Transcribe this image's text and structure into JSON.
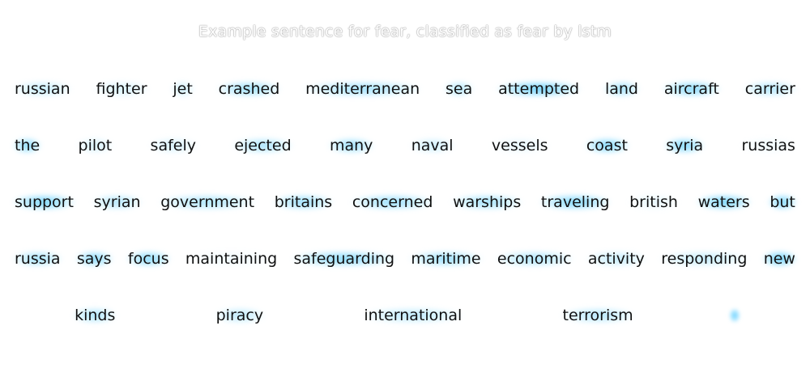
{
  "title": "Example sentence for fear, classified as fear by lstm",
  "rows": [
    [
      {
        "text": "russian",
        "w": 0.35
      },
      {
        "text": "fighter",
        "w": 0.25
      },
      {
        "text": "jet",
        "w": 0.3
      },
      {
        "text": "crashed",
        "w": 0.6
      },
      {
        "text": "mediterranean",
        "w": 0.55
      },
      {
        "text": "sea",
        "w": 0.45
      },
      {
        "text": "attempted",
        "w": 0.85
      },
      {
        "text": "land",
        "w": 0.55
      },
      {
        "text": "aircraft",
        "w": 0.7
      },
      {
        "text": "carrier",
        "w": 0.45
      }
    ],
    [
      {
        "text": "the",
        "w": 0.7
      },
      {
        "text": "pilot",
        "w": 0.25
      },
      {
        "text": "safely",
        "w": 0.25
      },
      {
        "text": "ejected",
        "w": 0.5
      },
      {
        "text": "many",
        "w": 0.6
      },
      {
        "text": "naval",
        "w": 0.3
      },
      {
        "text": "vessels",
        "w": 0.15
      },
      {
        "text": "coast",
        "w": 0.75
      },
      {
        "text": "syria",
        "w": 0.75
      },
      {
        "text": "russias",
        "w": 0.1
      }
    ],
    [
      {
        "text": "support",
        "w": 0.8
      },
      {
        "text": "syrian",
        "w": 0.45
      },
      {
        "text": "government",
        "w": 0.5
      },
      {
        "text": "britains",
        "w": 0.6
      },
      {
        "text": "concerned",
        "w": 0.6
      },
      {
        "text": "warships",
        "w": 0.55
      },
      {
        "text": "traveling",
        "w": 0.75
      },
      {
        "text": "british",
        "w": 0.15
      },
      {
        "text": "waters",
        "w": 0.8
      },
      {
        "text": "but",
        "w": 0.75
      }
    ],
    [
      {
        "text": "russia",
        "w": 0.55
      },
      {
        "text": "says",
        "w": 0.7
      },
      {
        "text": "focus",
        "w": 0.7
      },
      {
        "text": "maintaining",
        "w": 0.1
      },
      {
        "text": "safeguarding",
        "w": 0.7
      },
      {
        "text": "maritime",
        "w": 0.6
      },
      {
        "text": "economic",
        "w": 0.5
      },
      {
        "text": "activity",
        "w": 0.35
      },
      {
        "text": "responding",
        "w": 0.35
      },
      {
        "text": "new",
        "w": 0.85
      }
    ],
    [
      {
        "text": "kinds",
        "w": 0.5
      },
      {
        "text": "piracy",
        "w": 0.4
      },
      {
        "text": "international",
        "w": 0.4
      },
      {
        "text": "terrorism",
        "w": 0.45
      },
      {
        "text": "",
        "w": 0.85
      }
    ]
  ]
}
